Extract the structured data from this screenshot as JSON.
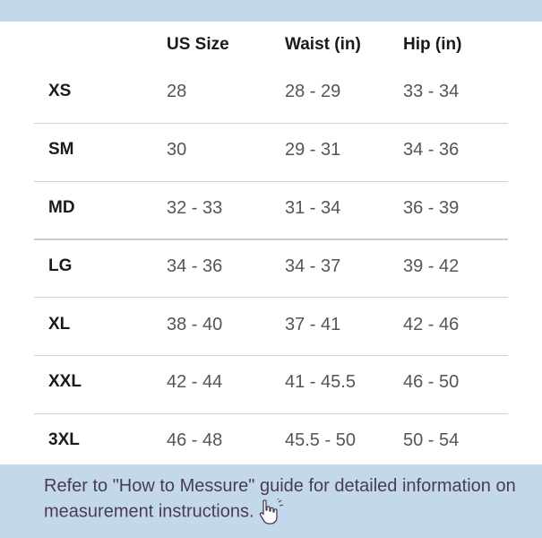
{
  "table": {
    "headers": [
      "",
      "US Size",
      "Waist (in)",
      "Hip (in)"
    ],
    "rows": [
      {
        "size": "XS",
        "us": "28",
        "waist": "28 - 29",
        "hip": "33 - 34"
      },
      {
        "size": "SM",
        "us": "30",
        "waist": "29 - 31",
        "hip": "34 - 36"
      },
      {
        "size": "MD",
        "us": "32 - 33",
        "waist": "31 - 34",
        "hip": "36 - 39"
      },
      {
        "size": "LG",
        "us": "34 - 36",
        "waist": "34 - 37",
        "hip": "39 - 42"
      },
      {
        "size": "XL",
        "us": "38 - 40",
        "waist": "37 - 41",
        "hip": "42 - 46"
      },
      {
        "size": "XXL",
        "us": "42 - 44",
        "waist": "41 - 45.5",
        "hip": "46 - 50"
      },
      {
        "size": "3XL",
        "us": "46 - 48",
        "waist": "45.5 - 50",
        "hip": "50 - 54"
      }
    ]
  },
  "note": {
    "text": "Refer to \"How to Messure\" guide for detailed information on measurement instructions.",
    "icon": "pointing-hand-icon"
  },
  "colors": {
    "band": "#c3d9ea",
    "panel": "#ffffff",
    "note_text": "#4a3a5c"
  }
}
